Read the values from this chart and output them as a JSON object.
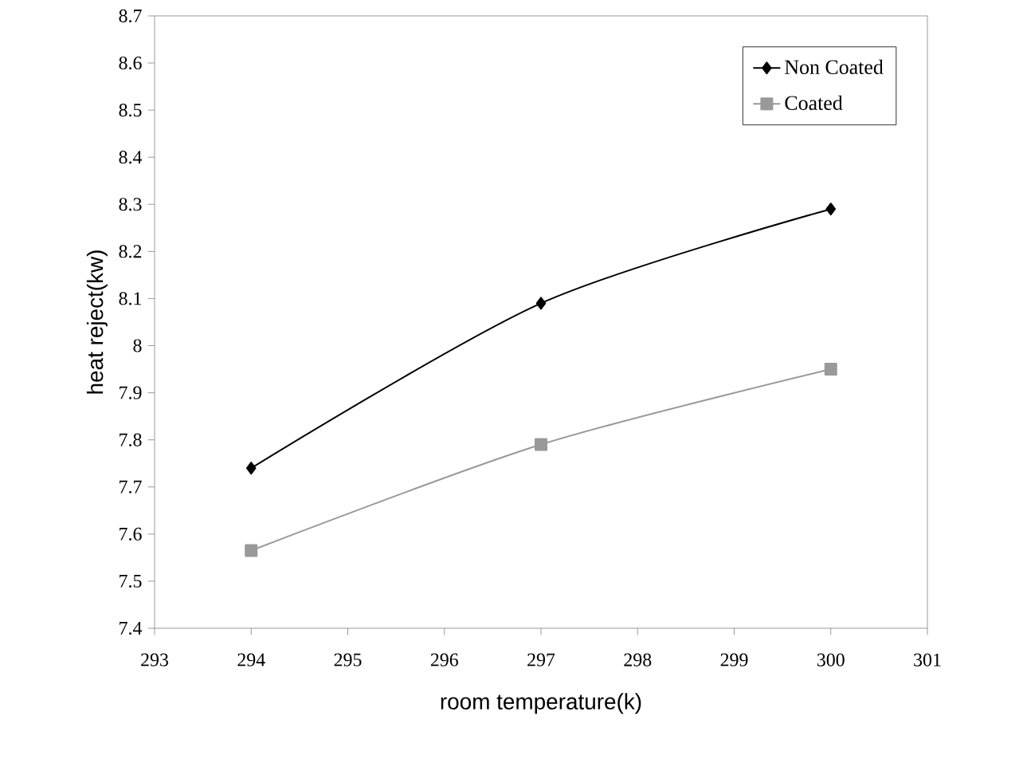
{
  "chart_data": {
    "type": "line",
    "xlabel": "room temperature(k)",
    "ylabel": "heat reject(kw)",
    "x": [
      294,
      297,
      300
    ],
    "series": [
      {
        "name": "Non Coated",
        "color": "#000000",
        "marker": "diamond",
        "values": [
          7.74,
          8.09,
          8.29
        ]
      },
      {
        "name": "Coated",
        "color": "#999999",
        "marker": "square",
        "values": [
          7.565,
          7.79,
          7.95
        ]
      }
    ],
    "xlim": [
      293,
      301
    ],
    "xticks": [
      293,
      294,
      295,
      296,
      297,
      298,
      299,
      300,
      301
    ],
    "ylim": [
      7.4,
      8.7
    ],
    "yticks": [
      7.4,
      7.5,
      7.6,
      7.7,
      7.8,
      7.9,
      8,
      8.1,
      8.2,
      8.3,
      8.4,
      8.5,
      8.6,
      8.7
    ],
    "grid": false,
    "legend": "top right",
    "line_style": "solid"
  }
}
